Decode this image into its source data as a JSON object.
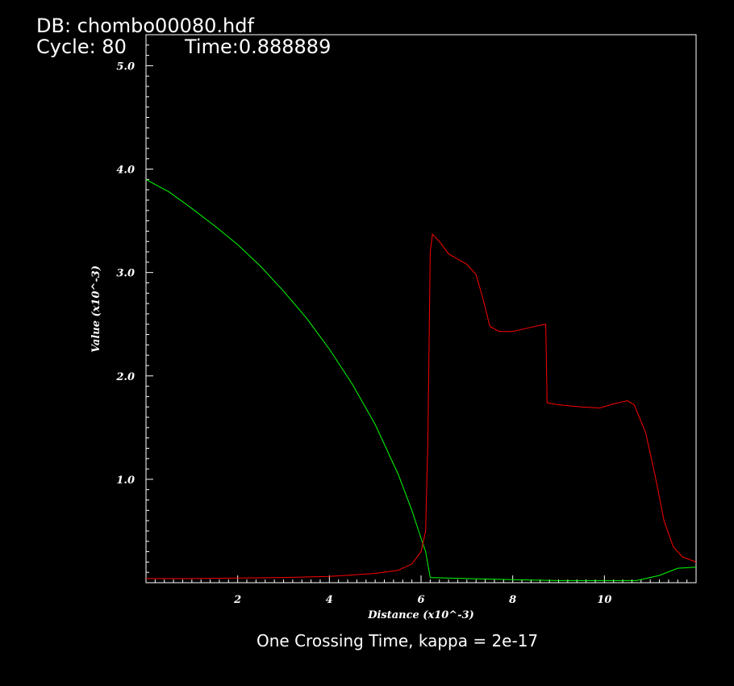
{
  "header": {
    "db_line": "DB: chombo00080.hdf",
    "cycle_line": "Cycle: 80",
    "time_line": "Time:0.888889"
  },
  "caption": "One Crossing Time, kappa = 2e-17",
  "chart_data": {
    "type": "line",
    "xlabel": "Distance (x10^-3)",
    "ylabel": "Value (x10^-3)",
    "xlim": [
      0,
      12
    ],
    "ylim": [
      0,
      5.3
    ],
    "x_ticks": [
      {
        "value": 2,
        "label": "2"
      },
      {
        "value": 4,
        "label": "4"
      },
      {
        "value": 6,
        "label": "6"
      },
      {
        "value": 8,
        "label": "8"
      },
      {
        "value": 10,
        "label": "10"
      }
    ],
    "y_ticks": [
      {
        "value": 1.0,
        "label": "1.0"
      },
      {
        "value": 2.0,
        "label": "2.0"
      },
      {
        "value": 3.0,
        "label": "3.0"
      },
      {
        "value": 4.0,
        "label": "4.0"
      },
      {
        "value": 5.0,
        "label": "5.0"
      }
    ],
    "grid": false,
    "series": [
      {
        "color": "#00ff00",
        "points": [
          [
            0.0,
            3.9
          ],
          [
            0.5,
            3.78
          ],
          [
            1.0,
            3.62
          ],
          [
            1.5,
            3.45
          ],
          [
            2.0,
            3.27
          ],
          [
            2.5,
            3.06
          ],
          [
            3.0,
            2.82
          ],
          [
            3.5,
            2.56
          ],
          [
            4.0,
            2.26
          ],
          [
            4.5,
            1.92
          ],
          [
            5.0,
            1.53
          ],
          [
            5.5,
            1.05
          ],
          [
            5.8,
            0.7
          ],
          [
            6.0,
            0.43
          ],
          [
            6.1,
            0.3
          ],
          [
            6.2,
            0.05
          ],
          [
            7.0,
            0.04
          ],
          [
            8.0,
            0.03
          ],
          [
            9.0,
            0.02
          ],
          [
            10.0,
            0.02
          ],
          [
            10.7,
            0.02
          ],
          [
            11.2,
            0.07
          ],
          [
            11.6,
            0.14
          ],
          [
            12.0,
            0.15
          ]
        ]
      },
      {
        "color": "#ff0000",
        "points": [
          [
            0.0,
            0.04
          ],
          [
            1.0,
            0.04
          ],
          [
            2.0,
            0.045
          ],
          [
            3.0,
            0.05
          ],
          [
            4.0,
            0.06
          ],
          [
            5.0,
            0.09
          ],
          [
            5.5,
            0.12
          ],
          [
            5.8,
            0.18
          ],
          [
            6.0,
            0.3
          ],
          [
            6.1,
            0.5
          ],
          [
            6.15,
            1.4
          ],
          [
            6.2,
            3.2
          ],
          [
            6.25,
            3.37
          ],
          [
            6.4,
            3.3
          ],
          [
            6.6,
            3.18
          ],
          [
            6.8,
            3.13
          ],
          [
            7.0,
            3.08
          ],
          [
            7.2,
            2.98
          ],
          [
            7.35,
            2.75
          ],
          [
            7.5,
            2.48
          ],
          [
            7.7,
            2.43
          ],
          [
            8.0,
            2.43
          ],
          [
            8.3,
            2.46
          ],
          [
            8.6,
            2.49
          ],
          [
            8.72,
            2.5
          ],
          [
            8.75,
            1.74
          ],
          [
            9.0,
            1.72
          ],
          [
            9.5,
            1.7
          ],
          [
            9.9,
            1.69
          ],
          [
            10.2,
            1.73
          ],
          [
            10.5,
            1.76
          ],
          [
            10.65,
            1.72
          ],
          [
            10.9,
            1.45
          ],
          [
            11.1,
            1.05
          ],
          [
            11.3,
            0.6
          ],
          [
            11.5,
            0.35
          ],
          [
            11.7,
            0.25
          ],
          [
            12.0,
            0.2
          ]
        ]
      }
    ]
  }
}
